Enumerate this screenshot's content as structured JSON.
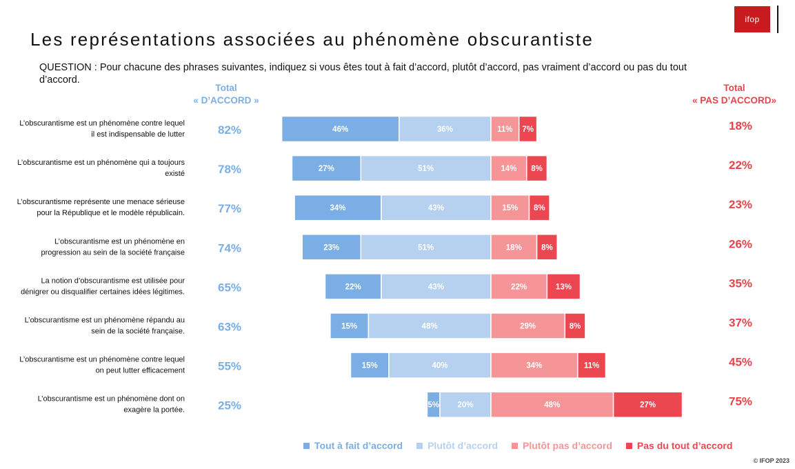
{
  "header": {
    "title": "Les représentations associées au phénomène obscurantiste",
    "question": "QUESTION : Pour chacune des phrases suivantes, indiquez si vous êtes tout à fait d’accord, plutôt d’accord, pas vraiment d’accord ou pas du tout d’accord.",
    "logo_text": "ifop",
    "total_agree_line1": "Total",
    "total_agree_line2": "« D’ACCORD »",
    "total_disagree_line1": "Total",
    "total_disagree_line2": "« PAS D’ACCORD»"
  },
  "colors": {
    "tout_a_fait": "#7aaee4",
    "plutot": "#b6d1f0",
    "plutot_pas": "#f59597",
    "pas_du_tout": "#ec4651",
    "agree_text": "#7aaee4",
    "disagree_text": "#e8424c"
  },
  "chart_data": {
    "type": "bar",
    "orientation": "horizontal-diverging",
    "categories": [
      "L’obscurantisme est un  phénomène contre lequel il est indispensable de lutter",
      "L’obscurantisme est un  phénomène qui a toujours existé",
      "L’obscurantisme représente une menace sérieuse pour la République et le modèle républicain.",
      "L’obscurantisme est un phénomène en progression au sein de la société française",
      "La notion d’obscurantisme est utilisée pour dénigrer ou disqualifier certaines idées légitimes.",
      "L’obscurantisme est un phénomène répandu au sein de la société française.",
      "L’obscurantisme est un  phénomène contre lequel on peut lutter efficacement",
      "L’obscurantisme est un phénomène dont on exagère la portée."
    ],
    "category_lines": [
      [
        "L’obscurantisme est un  phénomène contre lequel",
        "il est indispensable de lutter"
      ],
      [
        "L’obscurantisme est un  phénomène qui a toujours",
        "existé"
      ],
      [
        "L’obscurantisme représente une menace sérieuse",
        "pour la République et le modèle républicain."
      ],
      [
        "L’obscurantisme est un phénomène en",
        "progression au sein de la société française"
      ],
      [
        "La notion d’obscurantisme est utilisée pour",
        "dénigrer ou disqualifier certaines idées légitimes."
      ],
      [
        "L’obscurantisme est un phénomène répandu au",
        "sein de la société française."
      ],
      [
        "L’obscurantisme est un  phénomène contre lequel",
        "on peut lutter efficacement"
      ],
      [
        "L’obscurantisme est un phénomène dont on",
        "exagère la portée."
      ]
    ],
    "series": [
      {
        "name": "Tout à fait d’accord",
        "values": [
          46,
          27,
          34,
          23,
          22,
          15,
          15,
          5
        ]
      },
      {
        "name": "Plutôt d’accord",
        "values": [
          36,
          51,
          43,
          51,
          43,
          48,
          40,
          20
        ]
      },
      {
        "name": "Plutôt pas d’accord",
        "values": [
          11,
          14,
          15,
          18,
          22,
          29,
          34,
          48
        ]
      },
      {
        "name": "Pas du tout d’accord",
        "values": [
          7,
          8,
          8,
          8,
          13,
          8,
          11,
          27
        ]
      }
    ],
    "total_agree": [
      82,
      78,
      77,
      74,
      65,
      63,
      55,
      25
    ],
    "total_disagree": [
      18,
      22,
      23,
      26,
      35,
      37,
      45,
      75
    ],
    "value_suffix": "%"
  },
  "legend": [
    {
      "label": "Tout à fait d’accord",
      "color": "#7aaee4"
    },
    {
      "label": "Plutôt d’accord",
      "color": "#b6d1f0"
    },
    {
      "label": "Plutôt pas d’accord",
      "color": "#f59597"
    },
    {
      "label": "Pas du tout d’accord",
      "color": "#ec4651"
    }
  ],
  "footer": {
    "copyright": "© IFOP 2023"
  }
}
